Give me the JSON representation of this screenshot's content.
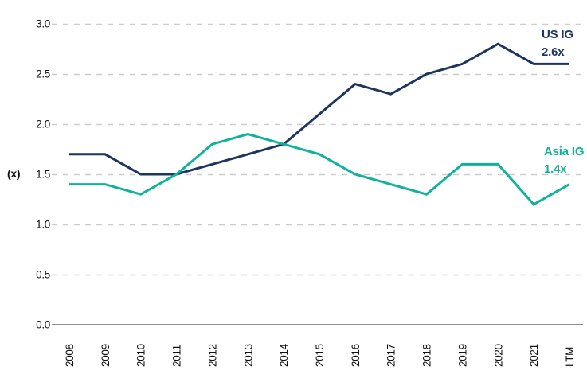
{
  "chart_data": {
    "type": "line",
    "title": "",
    "xlabel": "",
    "ylabel": "(x)",
    "ylim": [
      0.0,
      3.0
    ],
    "yticks": [
      "0.0",
      "0.5",
      "1.0",
      "1.5",
      "2.0",
      "2.5",
      "3.0"
    ],
    "grid": "horizontal-dashed",
    "legend_position": "inline-end-of-line-labels",
    "categories": [
      "2008",
      "2009",
      "2010",
      "2011",
      "2012",
      "2013",
      "2014",
      "2015",
      "2016",
      "2017",
      "2018",
      "2019",
      "2020",
      "2021",
      "LTM"
    ],
    "series": [
      {
        "name": "US IG",
        "end_value_label": "2.6x",
        "color": "#1e355f",
        "values": [
          1.7,
          1.7,
          1.5,
          1.5,
          1.6,
          1.7,
          1.8,
          2.1,
          2.4,
          2.3,
          2.5,
          2.6,
          2.8,
          2.6,
          2.6
        ]
      },
      {
        "name": "Asia IG",
        "end_value_label": "1.4x",
        "color": "#10b29b",
        "values": [
          1.4,
          1.4,
          1.3,
          1.5,
          1.8,
          1.9,
          1.8,
          1.7,
          1.5,
          1.4,
          1.3,
          1.6,
          1.6,
          1.2,
          1.4
        ]
      }
    ],
    "colors": {
      "axis_line": "#8f8f8f",
      "gridline": "#cccccc",
      "tick_label": "#111111"
    }
  }
}
